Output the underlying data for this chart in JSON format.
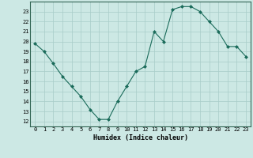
{
  "x": [
    0,
    1,
    2,
    3,
    4,
    5,
    6,
    7,
    8,
    9,
    10,
    11,
    12,
    13,
    14,
    15,
    16,
    17,
    18,
    19,
    20,
    21,
    22,
    23
  ],
  "y": [
    19.8,
    19.0,
    17.8,
    16.5,
    15.5,
    14.5,
    13.2,
    12.2,
    12.2,
    14.0,
    15.5,
    17.0,
    17.5,
    21.0,
    20.0,
    23.2,
    23.5,
    23.5,
    23.0,
    22.0,
    21.0,
    19.5,
    19.5,
    18.5
  ],
  "line_color": "#1a6b5a",
  "marker": "D",
  "marker_size": 2,
  "bg_color": "#cce8e4",
  "grid_color": "#a8ccc8",
  "xlabel": "Humidex (Indice chaleur)",
  "ylabel_ticks": [
    12,
    13,
    14,
    15,
    16,
    17,
    18,
    19,
    20,
    21,
    22,
    23
  ],
  "xticks": [
    0,
    1,
    2,
    3,
    4,
    5,
    6,
    7,
    8,
    9,
    10,
    11,
    12,
    13,
    14,
    15,
    16,
    17,
    18,
    19,
    20,
    21,
    22,
    23
  ],
  "xlim": [
    -0.5,
    23.5
  ],
  "ylim": [
    11.5,
    24.0
  ]
}
